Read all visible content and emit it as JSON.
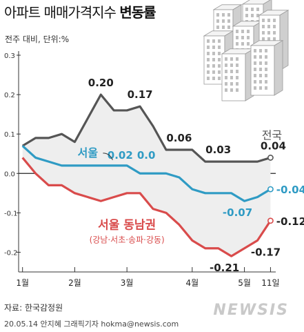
{
  "header": {
    "title_main": "아파트 매매가격지수 ",
    "title_bold": "변동률",
    "subtitle": "전주 대비, 단위:%"
  },
  "footer": {
    "source": "자료: 한국감정원",
    "credit": "20.05.14 안지혜 그래픽기자 hokma@newsis.com",
    "logo": "NEWSIS"
  },
  "colors": {
    "national": "#555555",
    "seoul": "#2f9bc4",
    "southeast": "#d94b4b",
    "baseline": "#222222"
  },
  "chart_data": {
    "type": "line",
    "title": "아파트 매매가격지수 변동률",
    "subtitle": "전주 대비, 단위:%",
    "ylim": [
      -0.25,
      0.3
    ],
    "y_ticks": [
      0.3,
      0.2,
      0.1,
      0.0,
      -0.1,
      -0.2
    ],
    "y_tick_labels": [
      "0.3",
      "0.2",
      "0.1",
      "0.0",
      "-0.1",
      "-0.2"
    ],
    "x_tick_labels": [
      "1월",
      "2월",
      "3월",
      "4월",
      "5월",
      "11일"
    ],
    "x_ticks": [
      1,
      5,
      9,
      14,
      18,
      20
    ],
    "xlim": [
      0.7,
      20.4
    ],
    "grid": false,
    "series": [
      {
        "name": "전국",
        "color": "#555555",
        "x": [
          1,
          2,
          3,
          4,
          5,
          6,
          7,
          8,
          9,
          10,
          11,
          12,
          13,
          14,
          15,
          16,
          17,
          18,
          19,
          20
        ],
        "values": [
          0.07,
          0.09,
          0.09,
          0.1,
          0.08,
          0.14,
          0.2,
          0.16,
          0.16,
          0.17,
          0.12,
          0.06,
          0.06,
          0.06,
          0.03,
          0.03,
          0.03,
          0.03,
          0.03,
          0.04
        ],
        "labels": [
          {
            "x": 7,
            "text": "0.20"
          },
          {
            "x": 10,
            "text": "0.17"
          },
          {
            "x": 13,
            "text": "0.06"
          },
          {
            "x": 16,
            "text": "0.03"
          },
          {
            "x": 20,
            "text": "0.04"
          }
        ]
      },
      {
        "name": "서울",
        "color": "#2f9bc4",
        "x": [
          1,
          2,
          3,
          4,
          5,
          6,
          7,
          8,
          9,
          10,
          11,
          12,
          13,
          14,
          15,
          16,
          17,
          18,
          19,
          20
        ],
        "values": [
          0.07,
          0.04,
          0.03,
          0.02,
          0.02,
          0.02,
          0.02,
          0.02,
          0.02,
          0.0,
          0.0,
          0.0,
          -0.01,
          -0.04,
          -0.05,
          -0.05,
          -0.05,
          -0.07,
          -0.06,
          -0.04
        ],
        "labels": [
          {
            "x": 7,
            "text": "0.02"
          },
          {
            "x": 9,
            "text": "0.0"
          },
          {
            "x": 18,
            "text": "-0.07"
          },
          {
            "x": 20,
            "text": "-0.04"
          }
        ]
      },
      {
        "name": "서울 동남권",
        "sublabel": "(강남·서초·송파·강동)",
        "color": "#d94b4b",
        "x": [
          1,
          2,
          3,
          4,
          5,
          6,
          7,
          8,
          9,
          10,
          11,
          12,
          13,
          14,
          15,
          16,
          17,
          18,
          19,
          20
        ],
        "values": [
          0.04,
          0.0,
          -0.03,
          -0.03,
          -0.05,
          -0.06,
          -0.07,
          -0.06,
          -0.05,
          -0.05,
          -0.09,
          -0.1,
          -0.13,
          -0.17,
          -0.19,
          -0.19,
          -0.21,
          -0.19,
          -0.17,
          -0.12
        ],
        "labels": [
          {
            "x": 17,
            "text": "-0.21"
          },
          {
            "x": 19,
            "text": "-0.17"
          },
          {
            "x": 20,
            "text": "-0.12"
          }
        ]
      }
    ]
  }
}
